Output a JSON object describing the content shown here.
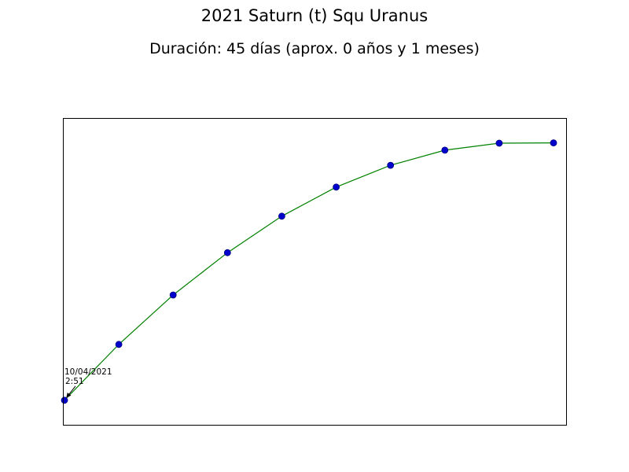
{
  "chart_data": {
    "type": "line",
    "title": "2021 Saturn (t) Squ Uranus",
    "subtitle": "Duración: 45 días (aprox. 0 años y 1 meses)",
    "xlabel": "",
    "ylabel": "",
    "grid": false,
    "xlim": [
      0,
      9
    ],
    "ylim": [
      0,
      100
    ],
    "series": [
      {
        "x": [
          0,
          1,
          2,
          3,
          4,
          5,
          6,
          7,
          8,
          9
        ],
        "values": [
          8,
          26.2,
          42.3,
          56.1,
          68,
          77.5,
          84.6,
          89.5,
          91.8,
          91.9
        ]
      }
    ],
    "colors": {
      "line": "#008000",
      "marker_fill": "#0000cc",
      "marker_edge": "#000080"
    },
    "annotation": {
      "date": "10/04/2021",
      "time": "2:51",
      "point_index": 0
    }
  }
}
